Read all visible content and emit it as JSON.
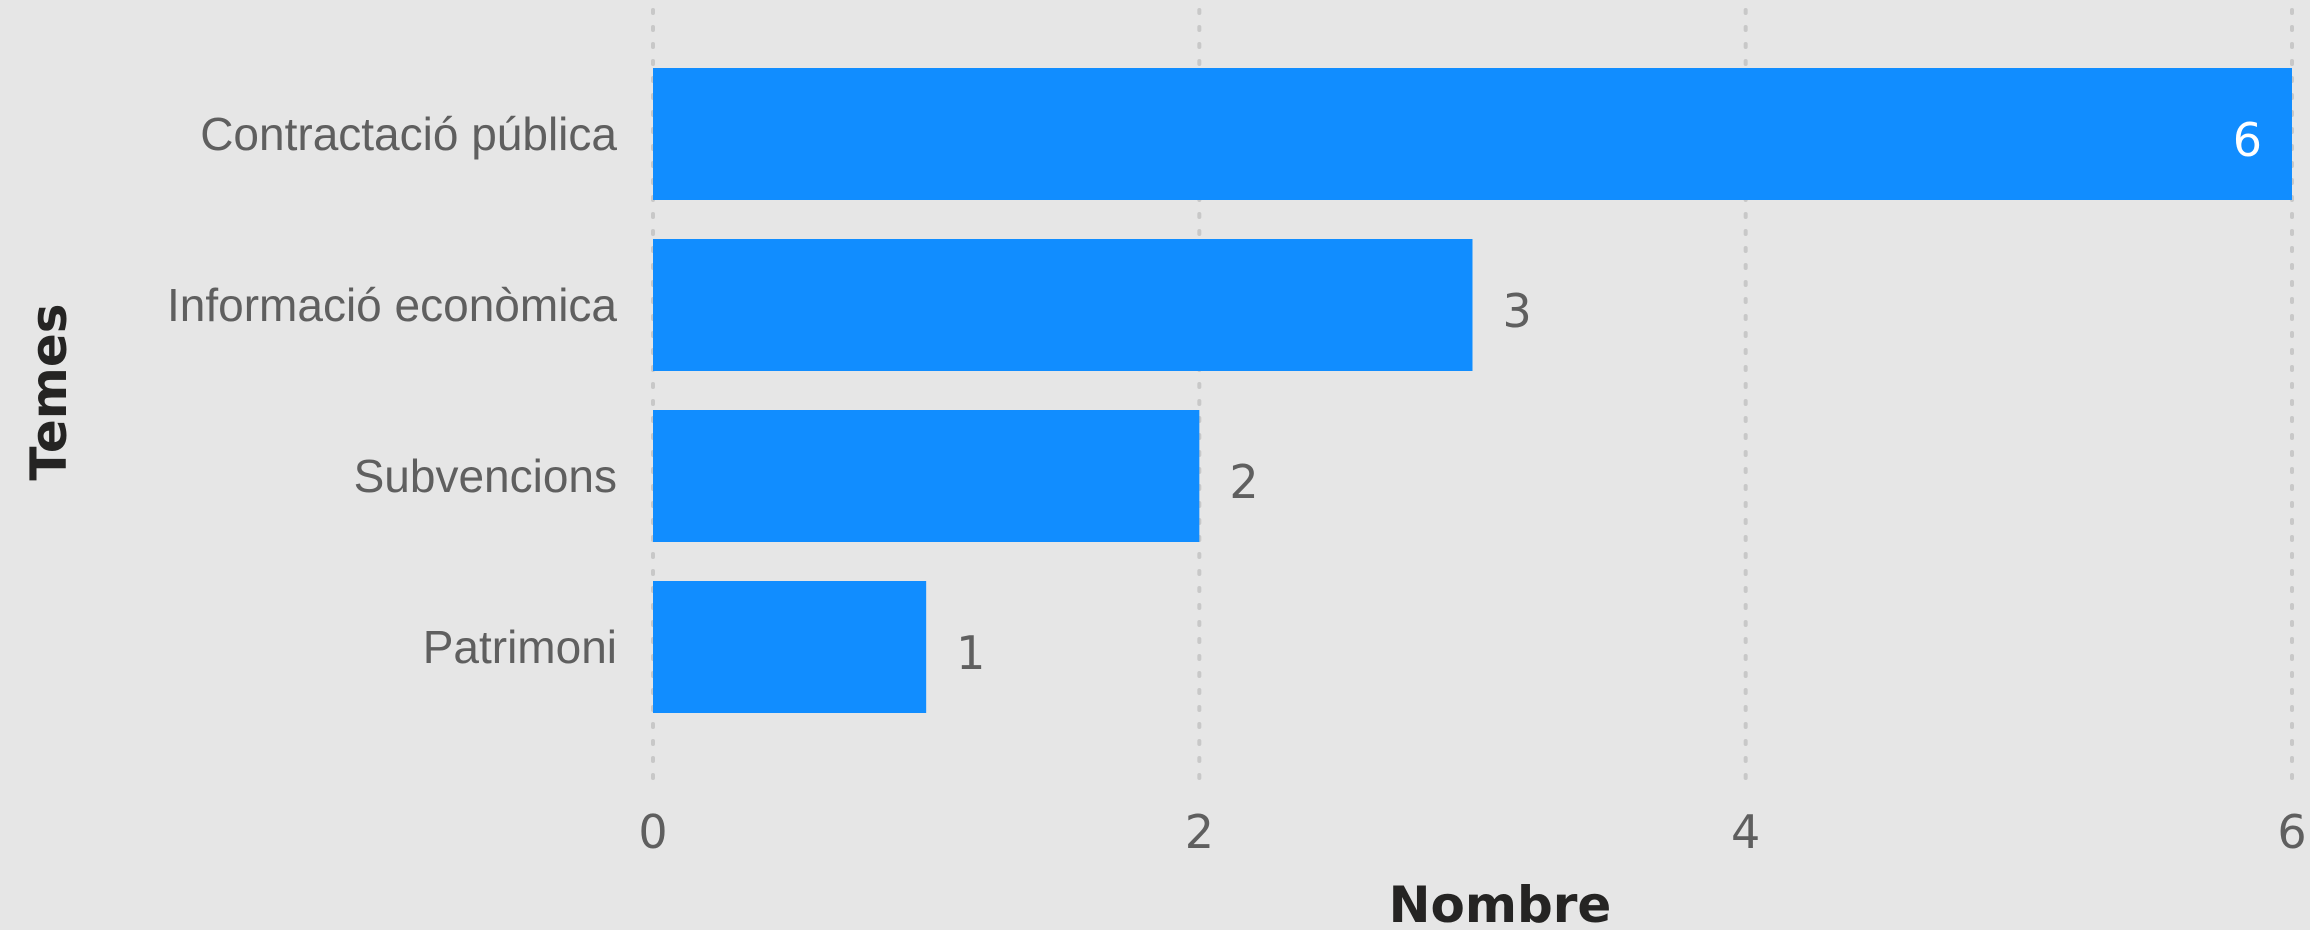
{
  "chart_data": {
    "type": "bar",
    "orientation": "horizontal",
    "categories": [
      "Contractació pública",
      "Informació econòmica",
      "Subvencions",
      "Patrimoni"
    ],
    "values": [
      6,
      3,
      2,
      1
    ],
    "data_labels": [
      "6",
      "3",
      "2",
      "1"
    ],
    "xlabel": "Nombre",
    "ylabel": "Temes",
    "xlim": [
      0,
      6
    ],
    "x_ticks": [
      0,
      2,
      4,
      6
    ],
    "x_tick_labels": [
      "0",
      "2",
      "4",
      "6"
    ],
    "grid": "vertical dotted",
    "legend": "none",
    "colors": {
      "bar": "#118dff",
      "background": "#e6e6e6",
      "gridline": "#c8c8c8",
      "text": "#5f5f5f",
      "axis_title": "#252423"
    }
  }
}
